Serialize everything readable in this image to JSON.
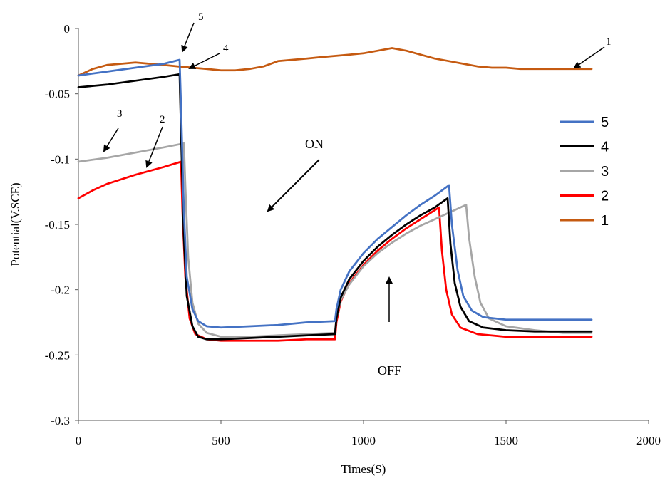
{
  "chart_data": {
    "type": "line",
    "xlabel": "Times(S)",
    "ylabel": "Potential(V.SCE)",
    "xlim": [
      0,
      2000
    ],
    "ylim": [
      -0.3,
      0
    ],
    "xticks": [
      "0",
      "500",
      "1000",
      "1500",
      "2000"
    ],
    "yticks": [
      "0",
      "-0.05",
      "-0.1",
      "-0.15",
      "-0.2",
      "-0.25",
      "-0.3"
    ],
    "grid": false,
    "legend_position": "right",
    "series": [
      {
        "name": "5",
        "color": "#4472C4",
        "points": [
          [
            0,
            -0.036
          ],
          [
            100,
            -0.033
          ],
          [
            200,
            -0.03
          ],
          [
            300,
            -0.027
          ],
          [
            355,
            -0.024
          ],
          [
            360,
            -0.06
          ],
          [
            370,
            -0.14
          ],
          [
            380,
            -0.19
          ],
          [
            400,
            -0.215
          ],
          [
            420,
            -0.224
          ],
          [
            450,
            -0.228
          ],
          [
            500,
            -0.229
          ],
          [
            600,
            -0.228
          ],
          [
            700,
            -0.227
          ],
          [
            800,
            -0.225
          ],
          [
            900,
            -0.224
          ],
          [
            905,
            -0.215
          ],
          [
            920,
            -0.2
          ],
          [
            950,
            -0.186
          ],
          [
            1000,
            -0.172
          ],
          [
            1050,
            -0.161
          ],
          [
            1100,
            -0.152
          ],
          [
            1150,
            -0.143
          ],
          [
            1200,
            -0.135
          ],
          [
            1250,
            -0.128
          ],
          [
            1300,
            -0.12
          ],
          [
            1310,
            -0.15
          ],
          [
            1330,
            -0.185
          ],
          [
            1350,
            -0.205
          ],
          [
            1380,
            -0.216
          ],
          [
            1420,
            -0.221
          ],
          [
            1500,
            -0.223
          ],
          [
            1600,
            -0.223
          ],
          [
            1700,
            -0.223
          ],
          [
            1800,
            -0.223
          ]
        ]
      },
      {
        "name": "4",
        "color": "#000000",
        "points": [
          [
            0,
            -0.045
          ],
          [
            100,
            -0.043
          ],
          [
            200,
            -0.04
          ],
          [
            300,
            -0.037
          ],
          [
            355,
            -0.035
          ],
          [
            360,
            -0.08
          ],
          [
            370,
            -0.16
          ],
          [
            380,
            -0.205
          ],
          [
            400,
            -0.228
          ],
          [
            420,
            -0.236
          ],
          [
            450,
            -0.238
          ],
          [
            500,
            -0.238
          ],
          [
            600,
            -0.237
          ],
          [
            700,
            -0.236
          ],
          [
            800,
            -0.235
          ],
          [
            900,
            -0.234
          ],
          [
            905,
            -0.222
          ],
          [
            920,
            -0.206
          ],
          [
            950,
            -0.192
          ],
          [
            1000,
            -0.178
          ],
          [
            1050,
            -0.167
          ],
          [
            1100,
            -0.158
          ],
          [
            1150,
            -0.15
          ],
          [
            1200,
            -0.143
          ],
          [
            1250,
            -0.137
          ],
          [
            1295,
            -0.13
          ],
          [
            1305,
            -0.165
          ],
          [
            1320,
            -0.195
          ],
          [
            1340,
            -0.213
          ],
          [
            1370,
            -0.224
          ],
          [
            1420,
            -0.229
          ],
          [
            1500,
            -0.231
          ],
          [
            1600,
            -0.232
          ],
          [
            1700,
            -0.232
          ],
          [
            1800,
            -0.232
          ]
        ]
      },
      {
        "name": "3",
        "color": "#A6A6A6",
        "points": [
          [
            0,
            -0.102
          ],
          [
            100,
            -0.099
          ],
          [
            200,
            -0.095
          ],
          [
            300,
            -0.091
          ],
          [
            370,
            -0.088
          ],
          [
            375,
            -0.12
          ],
          [
            385,
            -0.175
          ],
          [
            400,
            -0.21
          ],
          [
            420,
            -0.226
          ],
          [
            450,
            -0.233
          ],
          [
            500,
            -0.236
          ],
          [
            600,
            -0.236
          ],
          [
            700,
            -0.235
          ],
          [
            800,
            -0.234
          ],
          [
            900,
            -0.233
          ],
          [
            905,
            -0.222
          ],
          [
            920,
            -0.208
          ],
          [
            950,
            -0.196
          ],
          [
            1000,
            -0.182
          ],
          [
            1050,
            -0.172
          ],
          [
            1100,
            -0.164
          ],
          [
            1150,
            -0.157
          ],
          [
            1200,
            -0.151
          ],
          [
            1250,
            -0.146
          ],
          [
            1300,
            -0.141
          ],
          [
            1360,
            -0.135
          ],
          [
            1370,
            -0.16
          ],
          [
            1390,
            -0.19
          ],
          [
            1410,
            -0.21
          ],
          [
            1440,
            -0.222
          ],
          [
            1500,
            -0.228
          ],
          [
            1600,
            -0.231
          ],
          [
            1700,
            -0.233
          ],
          [
            1800,
            -0.233
          ]
        ]
      },
      {
        "name": "2",
        "color": "#FF0000",
        "points": [
          [
            0,
            -0.13
          ],
          [
            50,
            -0.124
          ],
          [
            100,
            -0.119
          ],
          [
            200,
            -0.112
          ],
          [
            300,
            -0.106
          ],
          [
            360,
            -0.102
          ],
          [
            365,
            -0.14
          ],
          [
            375,
            -0.19
          ],
          [
            390,
            -0.222
          ],
          [
            410,
            -0.234
          ],
          [
            450,
            -0.238
          ],
          [
            500,
            -0.239
          ],
          [
            600,
            -0.239
          ],
          [
            700,
            -0.239
          ],
          [
            800,
            -0.238
          ],
          [
            900,
            -0.238
          ],
          [
            905,
            -0.225
          ],
          [
            920,
            -0.209
          ],
          [
            950,
            -0.195
          ],
          [
            1000,
            -0.181
          ],
          [
            1050,
            -0.17
          ],
          [
            1100,
            -0.161
          ],
          [
            1150,
            -0.153
          ],
          [
            1200,
            -0.146
          ],
          [
            1265,
            -0.137
          ],
          [
            1275,
            -0.17
          ],
          [
            1290,
            -0.2
          ],
          [
            1310,
            -0.219
          ],
          [
            1340,
            -0.229
          ],
          [
            1400,
            -0.234
          ],
          [
            1500,
            -0.236
          ],
          [
            1600,
            -0.236
          ],
          [
            1700,
            -0.236
          ],
          [
            1800,
            -0.236
          ]
        ]
      },
      {
        "name": "1",
        "color": "#C55A11",
        "points": [
          [
            0,
            -0.036
          ],
          [
            50,
            -0.031
          ],
          [
            100,
            -0.028
          ],
          [
            150,
            -0.027
          ],
          [
            200,
            -0.026
          ],
          [
            250,
            -0.027
          ],
          [
            300,
            -0.028
          ],
          [
            350,
            -0.029
          ],
          [
            400,
            -0.03
          ],
          [
            450,
            -0.031
          ],
          [
            500,
            -0.032
          ],
          [
            550,
            -0.032
          ],
          [
            600,
            -0.031
          ],
          [
            650,
            -0.029
          ],
          [
            700,
            -0.025
          ],
          [
            750,
            -0.024
          ],
          [
            800,
            -0.023
          ],
          [
            850,
            -0.022
          ],
          [
            900,
            -0.021
          ],
          [
            950,
            -0.02
          ],
          [
            1000,
            -0.019
          ],
          [
            1050,
            -0.017
          ],
          [
            1100,
            -0.015
          ],
          [
            1150,
            -0.017
          ],
          [
            1200,
            -0.02
          ],
          [
            1250,
            -0.023
          ],
          [
            1300,
            -0.025
          ],
          [
            1350,
            -0.027
          ],
          [
            1400,
            -0.029
          ],
          [
            1450,
            -0.03
          ],
          [
            1500,
            -0.03
          ],
          [
            1550,
            -0.031
          ],
          [
            1600,
            -0.031
          ],
          [
            1650,
            -0.031
          ],
          [
            1700,
            -0.031
          ],
          [
            1750,
            -0.031
          ],
          [
            1800,
            -0.031
          ]
        ]
      }
    ],
    "annotations": [
      {
        "text": "ON"
      },
      {
        "text": "OFF"
      },
      {
        "text": "1"
      },
      {
        "text": "2"
      },
      {
        "text": "3"
      },
      {
        "text": "4"
      },
      {
        "text": "5"
      }
    ]
  }
}
